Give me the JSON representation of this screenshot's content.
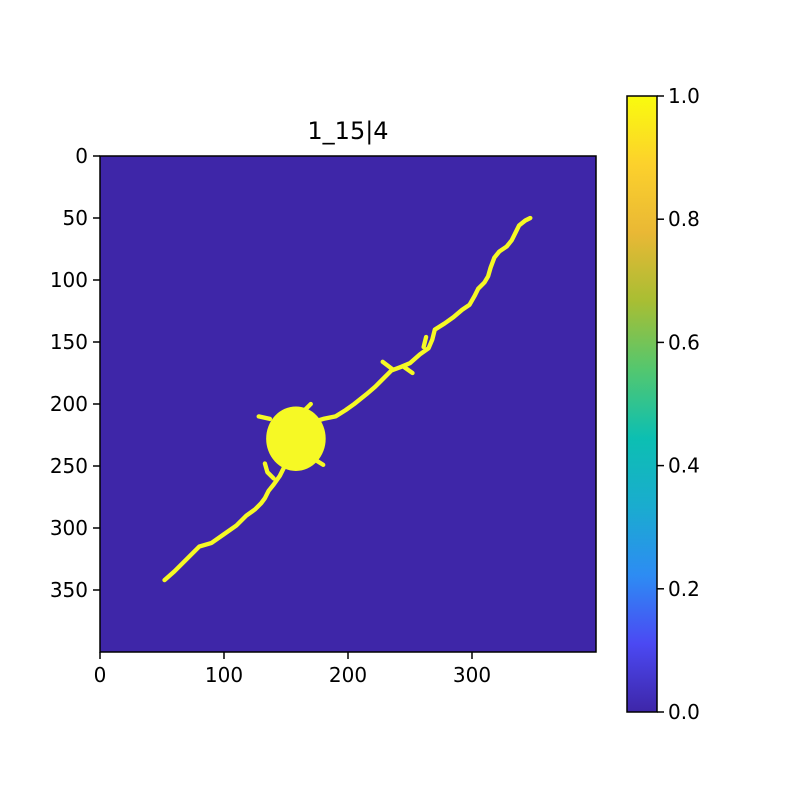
{
  "chart_data": {
    "type": "heatmap",
    "title": "1_15|4",
    "xlabel": "",
    "ylabel": "",
    "image_width": 400,
    "image_height": 400,
    "xlim": [
      0,
      400
    ],
    "ylim": [
      400,
      0
    ],
    "x_ticks": [
      0,
      100,
      200,
      300
    ],
    "y_ticks": [
      0,
      50,
      100,
      150,
      200,
      250,
      300,
      350
    ],
    "background_value": 0.0,
    "foreground_value": 1.0,
    "mask": {
      "soma": {
        "center": [
          158,
          228
        ],
        "radius": [
          24,
          26
        ]
      },
      "paths": [
        [
          [
            52,
            342
          ],
          [
            60,
            335
          ],
          [
            70,
            325
          ],
          [
            80,
            315
          ],
          [
            90,
            312
          ],
          [
            100,
            305
          ],
          [
            110,
            298
          ],
          [
            118,
            290
          ],
          [
            125,
            285
          ],
          [
            130,
            280
          ],
          [
            133,
            276
          ],
          [
            136,
            270
          ],
          [
            140,
            265
          ],
          [
            145,
            258
          ],
          [
            148,
            252
          ],
          [
            152,
            245
          ]
        ],
        [
          [
            140,
            260
          ],
          [
            135,
            255
          ],
          [
            133,
            248
          ]
        ],
        [
          [
            170,
            215
          ],
          [
            180,
            212
          ],
          [
            190,
            210
          ],
          [
            198,
            205
          ],
          [
            205,
            200
          ],
          [
            215,
            192
          ],
          [
            222,
            186
          ],
          [
            228,
            180
          ],
          [
            235,
            173
          ],
          [
            243,
            170
          ],
          [
            250,
            167
          ],
          [
            258,
            160
          ],
          [
            265,
            155
          ],
          [
            268,
            148
          ],
          [
            270,
            140
          ],
          [
            278,
            135
          ],
          [
            285,
            130
          ],
          [
            292,
            124
          ],
          [
            298,
            120
          ],
          [
            302,
            113
          ],
          [
            305,
            107
          ],
          [
            310,
            102
          ],
          [
            313,
            97
          ],
          [
            315,
            90
          ],
          [
            318,
            82
          ],
          [
            322,
            77
          ],
          [
            328,
            73
          ],
          [
            332,
            68
          ],
          [
            335,
            62
          ],
          [
            338,
            56
          ],
          [
            343,
            52
          ],
          [
            347,
            50
          ]
        ],
        [
          [
            236,
            172
          ],
          [
            228,
            166
          ]
        ],
        [
          [
            245,
            170
          ],
          [
            252,
            175
          ]
        ],
        [
          [
            261,
            154
          ],
          [
            263,
            146
          ]
        ],
        [
          [
            172,
            244
          ],
          [
            180,
            249
          ]
        ],
        [
          [
            165,
            205
          ],
          [
            170,
            200
          ]
        ],
        [
          [
            137,
            212
          ],
          [
            128,
            210
          ]
        ]
      ],
      "path_width": 3.5
    },
    "colorbar": {
      "min": 0.0,
      "max": 1.0,
      "ticks": [
        0.0,
        0.2,
        0.4,
        0.6,
        0.8,
        1.0
      ],
      "tick_labels": [
        "0.0",
        "0.2",
        "0.4",
        "0.6",
        "0.8",
        "1.0"
      ],
      "colormap": [
        "#3e26a8",
        "#4b49f3",
        "#2d8cf3",
        "#1aaccf",
        "#0cbfb2",
        "#53c76f",
        "#a8be33",
        "#e9b835",
        "#fcd12c",
        "#f9fb0e"
      ]
    },
    "colors": {
      "background": "#3e26a8",
      "foreground": "#f6f925"
    },
    "grid": false
  }
}
